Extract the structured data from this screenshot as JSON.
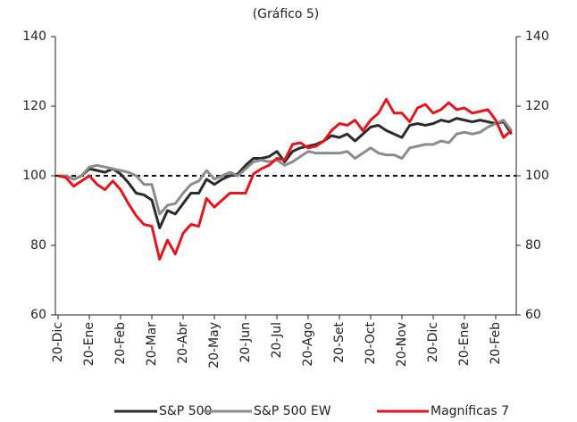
{
  "chart_data": {
    "type": "line",
    "title": "(Gráfico 5)",
    "categories": [
      "20-Dic",
      null,
      null,
      null,
      "20-Ene",
      null,
      null,
      null,
      "20-Feb",
      null,
      null,
      null,
      "20-Mar",
      null,
      null,
      null,
      "20-Abr",
      null,
      null,
      null,
      "20-May",
      null,
      null,
      null,
      "20-Jun",
      null,
      null,
      null,
      "20-Jul",
      null,
      null,
      null,
      "20-Ago",
      null,
      null,
      null,
      "20-Set",
      null,
      null,
      null,
      "20-Oct",
      null,
      null,
      null,
      "20-Nov",
      null,
      null,
      null,
      "20-Dic",
      null,
      null,
      null,
      "20-Ene",
      null,
      null,
      null,
      "20-Feb",
      null,
      null
    ],
    "series": [
      {
        "name": "S&P 500",
        "color": "#2b2b2b",
        "values": [
          100,
          100,
          99,
          100,
          102,
          101.5,
          101,
          102,
          100.5,
          98,
          95,
          94.5,
          93,
          85,
          90,
          89,
          92,
          95,
          95,
          99,
          97.5,
          99,
          100,
          100.5,
          103,
          105,
          105,
          105.5,
          107,
          104,
          107,
          108,
          108.5,
          109,
          110,
          111.5,
          111,
          112,
          110,
          112,
          114,
          114.5,
          113,
          112,
          111,
          114.5,
          115,
          114.5,
          115,
          116,
          115.5,
          116.5,
          116,
          115.5,
          116,
          115.5,
          115,
          115.5,
          112
        ]
      },
      {
        "name": "S&P 500 EW",
        "color": "#8c8c8c",
        "values": [
          100,
          100,
          99,
          100,
          102.5,
          103,
          102.5,
          102,
          101.5,
          101,
          100,
          97.5,
          97.5,
          89,
          91.5,
          92,
          95,
          97.5,
          98.5,
          101.5,
          99,
          100,
          101,
          100,
          102,
          104,
          104.5,
          104,
          104.5,
          103,
          104,
          105.5,
          107,
          106.5,
          106.5,
          106.5,
          106.5,
          107,
          105,
          106.5,
          108,
          106.5,
          106,
          106,
          105,
          108,
          108.5,
          109,
          109,
          110,
          109.5,
          112,
          112.5,
          112,
          112.5,
          114,
          115,
          116,
          113
        ]
      },
      {
        "name": "Magníficas 7",
        "color": "#e3161e",
        "values": [
          100,
          99.5,
          97,
          98.5,
          100,
          97.5,
          96,
          98.5,
          96,
          92,
          88.5,
          86,
          85.5,
          76,
          81.5,
          77.5,
          83.5,
          86,
          85.5,
          93.5,
          91,
          93,
          95,
          95,
          95,
          100.5,
          102,
          103,
          105,
          104.5,
          109,
          109.5,
          108,
          108.5,
          110,
          113,
          115,
          114.5,
          116,
          113,
          116,
          118,
          122,
          118,
          118,
          115.5,
          119.5,
          120.5,
          118,
          119,
          121,
          119,
          119.5,
          118,
          118.5,
          119,
          116,
          111,
          113
        ]
      }
    ],
    "ylim": [
      60,
      140
    ],
    "yticks": [
      60,
      80,
      100,
      120,
      140
    ],
    "y2lim": [
      60,
      140
    ],
    "y2ticks": [
      60,
      80,
      100,
      120,
      140
    ],
    "reference_line": 100,
    "grid": false
  }
}
